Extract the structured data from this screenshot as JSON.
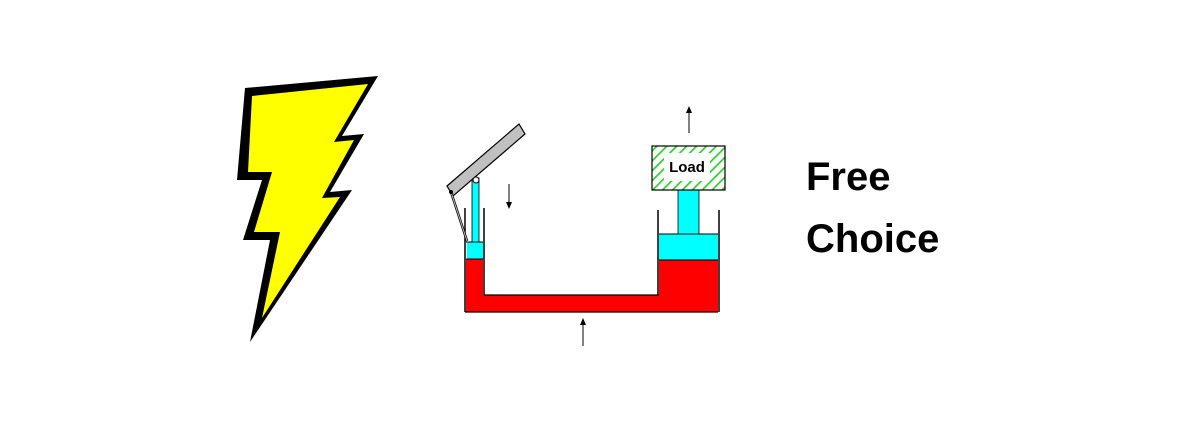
{
  "colors": {
    "bolt_fill": "#ffff00",
    "bolt_outline": "#000000",
    "fluid": "#ff0000",
    "piston": "#00ffff",
    "load_hatch": "#33cc33",
    "lever": "#c0c0c0"
  },
  "icons": {
    "bolt": "lightning-bolt-icon"
  },
  "diagram": {
    "load_label": "Load"
  },
  "caption": {
    "line1": "Free",
    "line2": "Choice"
  }
}
